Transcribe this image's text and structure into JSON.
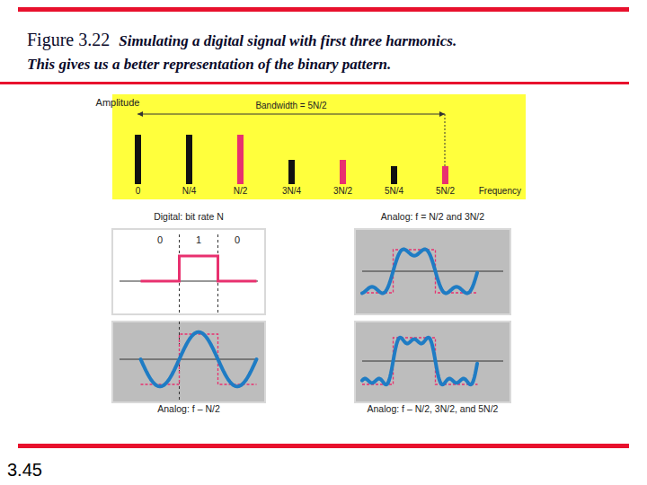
{
  "header": {
    "figure": "Figure 3.22",
    "caption": [
      "Simulating a digital signal with first three harmonics.",
      "This gives us a better representation of the binary pattern."
    ]
  },
  "chart_data": {
    "type": "bar",
    "x_label": "Frequency",
    "y_label": "Amplitude",
    "categories": [
      "0",
      "N/4",
      "N/2",
      "3N/4",
      "3N/2",
      "5N/4",
      "5N/2"
    ],
    "values": [
      55,
      55,
      55,
      27,
      27,
      20,
      20
    ],
    "colors": [
      "#111111",
      "#111111",
      "#e8316f",
      "#111111",
      "#e8316f",
      "#111111",
      "#e8316f"
    ],
    "annotation": "Bandwidth = 5N/2",
    "tick_labels": "x"
  },
  "panels": [
    {
      "label": "Digital: bit rate N",
      "bits": [
        "0",
        "1",
        "0"
      ]
    },
    {
      "label": "Analog: f = N/2 and 3N/2"
    },
    {
      "label": "Analog: f – N/2"
    },
    {
      "label": "Analog: f – N/2, 3N/2, and 5N/2"
    }
  ],
  "page_number": "3.45"
}
